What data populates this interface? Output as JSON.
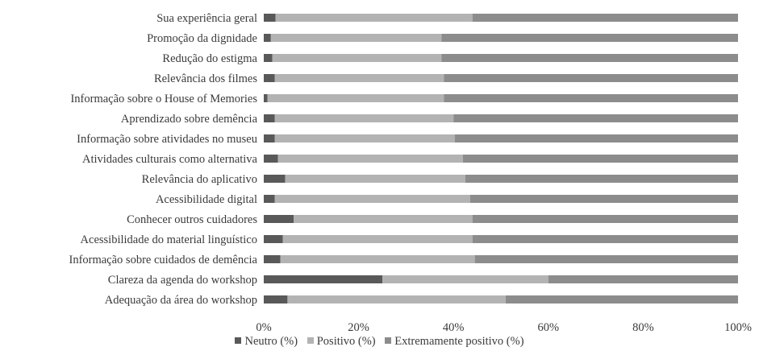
{
  "chart_data": {
    "type": "bar",
    "orientation": "horizontal",
    "stacked": true,
    "percent_stacked": true,
    "categories": [
      "Sua experiência geral",
      "Promoção da dignidade",
      "Redução do estigma",
      "Relevância dos filmes",
      "Informação sobre o House of Memories",
      "Aprendizado sobre demência",
      "Informação sobre atividades no museu",
      "Atividades culturais como alternativa",
      "Relevância do aplicativo",
      "Acessibilidade digital",
      "Conhecer outros cuidadores",
      "Acessibilidade do material linguístico",
      "Informação sobre cuidados de demência",
      "Clareza da agenda do workshop",
      "Adequação da área do workshop"
    ],
    "series": [
      {
        "name": "Neutro (%)",
        "color": "#595959",
        "values": [
          2.5,
          1.5,
          1.8,
          2.3,
          0.8,
          2.3,
          2.3,
          3.0,
          4.5,
          2.3,
          6.3,
          4.0,
          3.5,
          25.0,
          5.0
        ]
      },
      {
        "name": "Positivo (%)",
        "color": "#b3b3b3",
        "values": [
          41.5,
          36.0,
          35.7,
          35.7,
          37.2,
          37.7,
          38.0,
          39.0,
          38.0,
          41.2,
          37.7,
          40.0,
          41.0,
          35.0,
          46.0
        ]
      },
      {
        "name": "Extremamente positivo (%)",
        "color": "#8c8c8c",
        "values": [
          56.0,
          62.5,
          62.5,
          62.0,
          62.0,
          60.0,
          59.7,
          58.0,
          57.5,
          56.5,
          56.0,
          56.0,
          55.5,
          40.0,
          49.0
        ]
      }
    ],
    "xticks": [
      "0%",
      "20%",
      "40%",
      "60%",
      "80%",
      "100%"
    ],
    "xlim": [
      0,
      100
    ],
    "legend_position": "bottom",
    "grid": false
  }
}
